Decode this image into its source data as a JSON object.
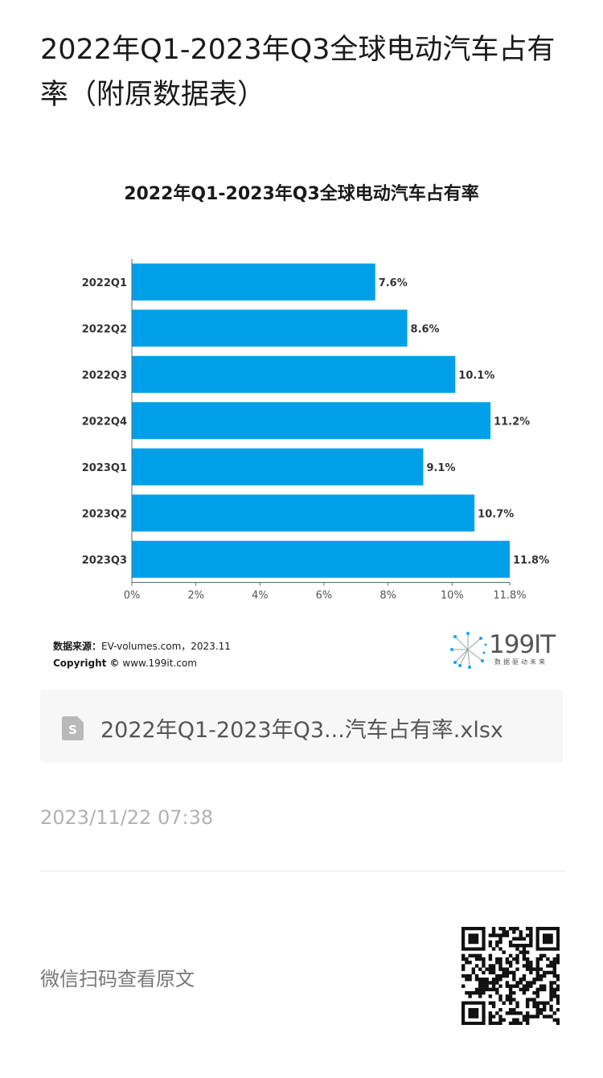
{
  "article": {
    "title": "2022年Q1-2023年Q3全球电动汽车占有率（附原数据表）",
    "publish_time": "2023/11/22 07:38"
  },
  "chart_source": {
    "source_label": "数据来源：",
    "source_text": "EV-volumes.com，2023.11",
    "copyright_label": "Copyright ©",
    "copyright_text": "www.199it.com"
  },
  "brand": {
    "name": "199IT",
    "tagline": "数据驱动未来"
  },
  "attachment": {
    "icon": "spreadsheet-file-icon",
    "file_name": "2022年Q1-2023年Q3...汽车占有率.xlsx"
  },
  "footer": {
    "scan_hint": "微信扫码查看原文",
    "qr_icon": "qr-code"
  },
  "colors": {
    "bar": "#00a0e9",
    "title_text": "#1a1a1a",
    "muted_text": "#b2b2b2"
  },
  "chart_data": {
    "type": "bar",
    "orientation": "horizontal",
    "title": "2022年Q1-2023年Q3全球电动汽车占有率",
    "categories": [
      "2022Q1",
      "2022Q2",
      "2022Q3",
      "2022Q4",
      "2023Q1",
      "2023Q2",
      "2023Q3"
    ],
    "values": [
      7.6,
      8.6,
      10.1,
      11.2,
      9.1,
      10.7,
      11.8
    ],
    "value_labels": [
      "7.6%",
      "8.6%",
      "10.1%",
      "11.2%",
      "9.1%",
      "10.7%",
      "11.8%"
    ],
    "x_ticks": [
      "0%",
      "2%",
      "4%",
      "6%",
      "8%",
      "10%",
      "11.8%"
    ],
    "x_tick_values": [
      0,
      2,
      4,
      6,
      8,
      10,
      11.8
    ],
    "xlim": [
      0,
      11.8
    ],
    "xlabel": "",
    "ylabel": "",
    "grid": false,
    "legend": "none"
  }
}
